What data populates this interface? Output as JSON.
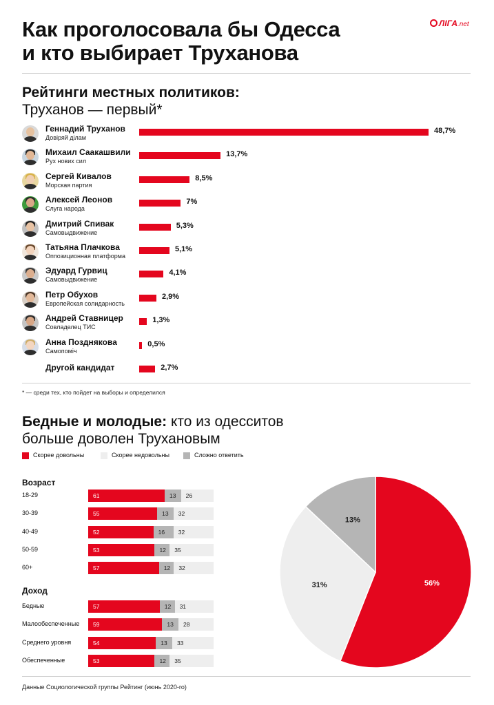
{
  "header": {
    "title_line1": "Как проголосовала бы Одесса",
    "title_line2": "и кто выбирает Труханова",
    "logo_text": "ЛIГА",
    "logo_suffix": ".net"
  },
  "ratings_section": {
    "heading_bold": "Рейтинги местных политиков:",
    "heading_regular": "Труханов — первый*",
    "footnote": "* — среди тех, кто пойдет на выборы и определился"
  },
  "satisfaction_section": {
    "heading_bold": "Бедные и молодые:",
    "heading_regular_1": "кто из одесситов",
    "heading_regular_2": "больше доволен Трухановым",
    "legend": [
      "Скорее довольны",
      "Скорее недовольны",
      "Сложно ответить"
    ],
    "group_age": "Возраст",
    "group_income": "Доход"
  },
  "source": "Данные Социологической группы Рейтинг (июнь 2020-го)",
  "colors": {
    "red": "#e4061e",
    "light": "#eeeeee",
    "gray": "#b5b5b5"
  },
  "chart_data": [
    {
      "type": "bar",
      "orientation": "horizontal",
      "title": "Рейтинги местных политиков: Труханов — первый*",
      "categories": [
        "Геннадий Труханов",
        "Михаил Саакашвили",
        "Сергей Кивалов",
        "Алексей Леонов",
        "Дмитрий Спивак",
        "Татьяна Плачкова",
        "Эдуард Гурвиц",
        "Петр Обухов",
        "Андрей Ставницер",
        "Анна Позднякова",
        "Другой кандидат"
      ],
      "subtitles": [
        "Довіряй ділам",
        "Рух нових сил",
        "Морская партия",
        "Слуга народа",
        "Самовыдвижение",
        "Оппозиционная платформа",
        "Самовыдвижение",
        "Европейская солидарность",
        "Совладелец ТИС",
        "Самопоміч",
        ""
      ],
      "values": [
        48.7,
        13.7,
        8.5,
        7,
        5.3,
        5.1,
        4.1,
        2.9,
        1.3,
        0.5,
        2.7
      ],
      "value_labels": [
        "48,7%",
        "13,7%",
        "8,5%",
        "7%",
        "5,3%",
        "5,1%",
        "4,1%",
        "2,9%",
        "1,3%",
        "0,5%",
        "2,7%"
      ],
      "color": "#e4061e",
      "legend": "none",
      "grid": false
    },
    {
      "type": "bar",
      "orientation": "horizontal",
      "stacked": true,
      "categories": [
        "18-29",
        "30-39",
        "40-49",
        "50-59",
        "60+",
        "Бедные",
        "Малообеспеченные",
        "Среднего уровня",
        "Обеспеченные"
      ],
      "groups": [
        {
          "name": "Возраст",
          "categories": [
            "18-29",
            "30-39",
            "40-49",
            "50-59",
            "60+"
          ]
        },
        {
          "name": "Доход",
          "categories": [
            "Бедные",
            "Малообеспеченные",
            "Среднего уровня",
            "Обеспеченные"
          ]
        }
      ],
      "series": [
        {
          "name": "Скорее довольны",
          "color": "#e4061e",
          "values": [
            61,
            55,
            52,
            53,
            57,
            57,
            59,
            54,
            53
          ]
        },
        {
          "name": "Скорее недовольны",
          "color": "#b5b5b5",
          "values": [
            13,
            13,
            16,
            12,
            12,
            12,
            13,
            13,
            12
          ]
        },
        {
          "name": "Сложно ответить",
          "color": "#eeeeee",
          "values": [
            26,
            32,
            32,
            35,
            32,
            31,
            28,
            33,
            35
          ]
        }
      ],
      "legend": "top",
      "grid": false
    },
    {
      "type": "pie",
      "labels": [
        "56%",
        "31%",
        "13%"
      ],
      "values": [
        56,
        31,
        13
      ],
      "colors": [
        "#e4061e",
        "#eeeeee",
        "#b5b5b5"
      ],
      "legend": "none"
    }
  ]
}
